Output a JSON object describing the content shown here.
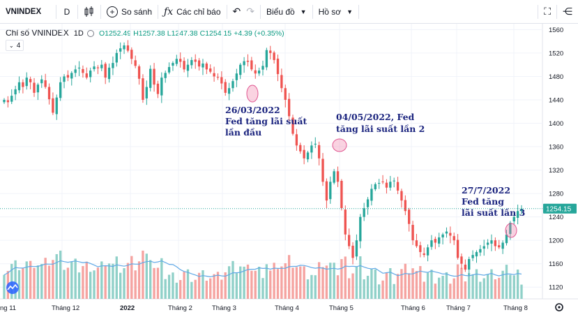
{
  "toolbar": {
    "symbol": "VNINDEX",
    "interval": "D",
    "compare_label": "So sánh",
    "indicators_label": "Các chỉ báo",
    "chart_type_label": "Biểu đồ",
    "profile_label": "Hồ sơ"
  },
  "legend": {
    "title": "Chỉ số VNINDEX",
    "interval": "1D",
    "open": "O1252.49",
    "high": "H1257.38",
    "low": "L1247.38",
    "close": "C1254.15",
    "change": "+4.39 (+0.35%)",
    "indicator_count": "4"
  },
  "colors": {
    "up": "#26a69a",
    "down": "#ef5350",
    "vol_up": "#8fd0c8",
    "vol_down": "#f5a3a0",
    "ma": "#5fa8e6",
    "annotation": "#1a237e",
    "last": "#26a69a"
  },
  "annotations": [
    {
      "date_label": "26/03/2022",
      "text_1": "Fed tăng lãi suất",
      "text_2": "lần đầu"
    },
    {
      "date_label": "04/05/2022, Fed",
      "text_1": "tăng lãi suất lần 2"
    },
    {
      "date_label": "27/7/2022",
      "text_1": "Fed tăng",
      "text_2": "lãi suất lần 3"
    }
  ],
  "last_price_label": "1254.15",
  "chart_data": {
    "type": "candlestick",
    "title": "Chỉ số VNINDEX",
    "interval": "1D",
    "ylim": [
      1100,
      1570
    ],
    "y_ticks": [
      1560,
      1520,
      1480,
      1440,
      1400,
      1360,
      1320,
      1280,
      1240,
      1200,
      1160,
      1120
    ],
    "x_ticks": [
      "ng 11",
      "Tháng 12",
      "2022",
      "Tháng 2",
      "Tháng 3",
      "Tháng 4",
      "Tháng 5",
      "Tháng 6",
      "Tháng 7",
      "Tháng 8"
    ],
    "last_price": 1254.15,
    "volume_ma_shown": true,
    "close_series": [
      1440,
      1436,
      1447,
      1458,
      1470,
      1462,
      1478,
      1470,
      1452,
      1466,
      1475,
      1462,
      1441,
      1418,
      1444,
      1470,
      1480,
      1478,
      1486,
      1492,
      1495,
      1486,
      1478,
      1490,
      1497,
      1494,
      1500,
      1478,
      1495,
      1503,
      1520,
      1528,
      1533,
      1524,
      1510,
      1498,
      1476,
      1440,
      1462,
      1493,
      1466,
      1450,
      1478,
      1486,
      1496,
      1503,
      1510,
      1505,
      1492,
      1500,
      1508,
      1505,
      1497,
      1502,
      1492,
      1488,
      1480,
      1478,
      1468,
      1452,
      1460,
      1472,
      1485,
      1500,
      1506,
      1505,
      1492,
      1485,
      1490,
      1498,
      1525,
      1520,
      1508,
      1484,
      1460,
      1440,
      1412,
      1382,
      1362,
      1352,
      1340,
      1350,
      1362,
      1365,
      1340,
      1300,
      1268,
      1300,
      1318,
      1300,
      1255,
      1210,
      1190,
      1170,
      1200,
      1240,
      1255,
      1270,
      1288,
      1296,
      1298,
      1300,
      1290,
      1300,
      1302,
      1285,
      1268,
      1250,
      1228,
      1200,
      1190,
      1180,
      1175,
      1188,
      1200,
      1196,
      1205,
      1210,
      1215,
      1208,
      1200,
      1170,
      1160,
      1150,
      1168,
      1175,
      1180,
      1185,
      1190,
      1196,
      1200,
      1190,
      1188,
      1196,
      1210,
      1230,
      1240,
      1250,
      1254
    ]
  }
}
